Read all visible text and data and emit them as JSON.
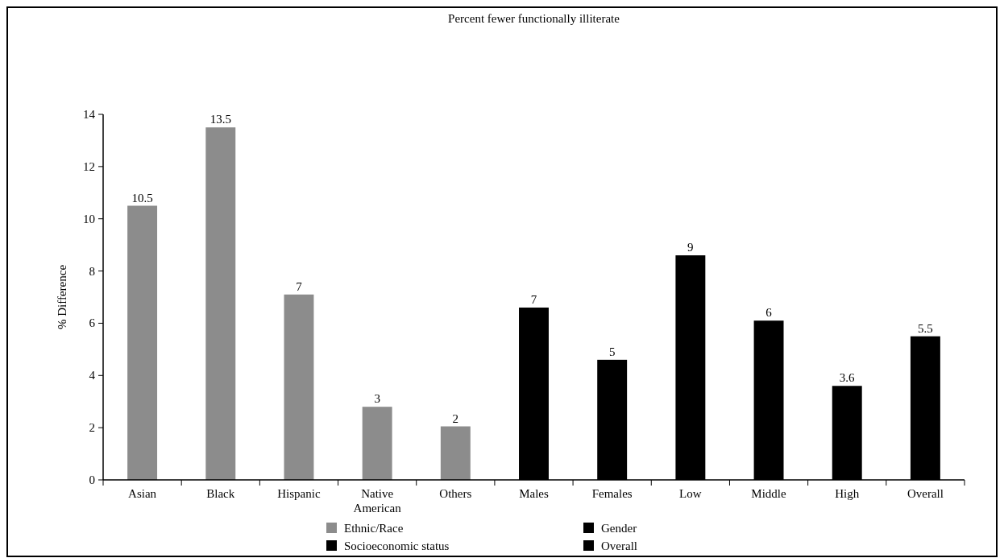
{
  "chart_data": {
    "type": "bar",
    "title": "Percent fewer functionally illiterate",
    "ylabel": "% Difference",
    "categories": [
      "Asian",
      "Black",
      "Hispanic",
      "Native American",
      "Others",
      "Males",
      "Females",
      "Low",
      "Middle",
      "High",
      "Overall"
    ],
    "series": [
      {
        "name": "Ethnic/Race",
        "color": "#8c8c8c",
        "values": [
          10.5,
          13.5,
          7.1,
          2.8,
          2.05,
          null,
          null,
          null,
          null,
          null,
          null
        ],
        "value_labels": [
          "10.5",
          "13.5",
          "7",
          "3",
          "2",
          null,
          null,
          null,
          null,
          null,
          null
        ]
      },
      {
        "name": "Gender",
        "color": "#000000",
        "values": [
          null,
          null,
          null,
          null,
          null,
          6.6,
          4.6,
          null,
          null,
          null,
          null
        ],
        "value_labels": [
          null,
          null,
          null,
          null,
          null,
          "7",
          "5",
          null,
          null,
          null,
          null
        ]
      },
      {
        "name": "Socioeconomic status",
        "color": "#000000",
        "values": [
          null,
          null,
          null,
          null,
          null,
          null,
          null,
          8.6,
          6.1,
          3.6,
          null
        ],
        "value_labels": [
          null,
          null,
          null,
          null,
          null,
          null,
          null,
          "9",
          "6",
          "3.6",
          null
        ]
      },
      {
        "name": "Overall",
        "color": "#000000",
        "values": [
          null,
          null,
          null,
          null,
          null,
          null,
          null,
          null,
          null,
          null,
          5.5
        ],
        "value_labels": [
          null,
          null,
          null,
          null,
          null,
          null,
          null,
          null,
          null,
          null,
          "5.5"
        ]
      }
    ],
    "ylim": [
      0,
      14
    ],
    "yticks": [
      0,
      2,
      4,
      6,
      8,
      10,
      12,
      14
    ],
    "grid": false,
    "legend": "bottom"
  }
}
